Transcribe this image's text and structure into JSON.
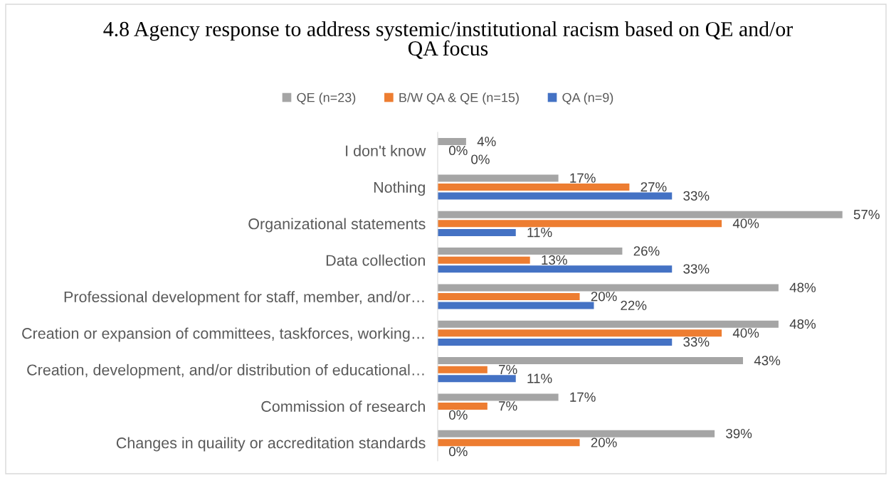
{
  "chart_data": {
    "type": "bar",
    "orientation": "horizontal",
    "title": "4.8 Agency response to address systemic/institutional racism based on QE and/or QA focus",
    "categories": [
      "I don't know",
      "Nothing",
      "Organizational statements",
      "Data collection",
      "Professional development for staff, member, and/or…",
      "Creation or expansion of committees, taskforces, working…",
      "Creation, development, and/or distribution of educational…",
      "Commission of research",
      "Changes in quaility or accreditation standards"
    ],
    "series": [
      {
        "name": "QE (n=23)",
        "color": "#a5a5a5",
        "values": [
          4,
          17,
          57,
          26,
          48,
          48,
          43,
          17,
          39
        ],
        "value_labels": [
          "4%",
          "17%",
          "57%",
          "26%",
          "48%",
          "48%",
          "43%",
          "17%",
          "39%"
        ]
      },
      {
        "name": "B/W QA & QE (n=15)",
        "color": "#ed7d31",
        "values": [
          0,
          27,
          40,
          13,
          20,
          40,
          7,
          7,
          20
        ],
        "value_labels": [
          "0%",
          "27%",
          "40%",
          "13%",
          "20%",
          "40%",
          "7%",
          "7%",
          "20%"
        ]
      },
      {
        "name": "QA (n=9)",
        "color": "#4472c4",
        "values": [
          0,
          33,
          11,
          33,
          22,
          33,
          11,
          0,
          0
        ],
        "value_labels": [
          "0%",
          "33%",
          "11%",
          "33%",
          "22%",
          "33%",
          "11%",
          "0%",
          "0%"
        ]
      }
    ],
    "tick_labels": "y",
    "legend": "top"
  }
}
